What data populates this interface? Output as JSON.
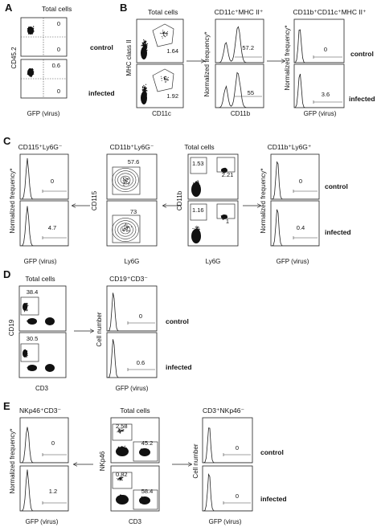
{
  "panels": [
    {
      "label": "A",
      "plots": [
        {
          "title": "Total cells",
          "ylabel": "CD45.2",
          "xlabel": "GFP (virus)",
          "values": [
            {
              "cond": "control",
              "numbers": [
                "0",
                "0"
              ]
            },
            {
              "cond": "infected",
              "numbers": [
                "0.6",
                "0"
              ]
            }
          ]
        }
      ],
      "conditions": [
        "control",
        "infected"
      ]
    },
    {
      "label": "B",
      "plots": [
        {
          "title": "Total cells",
          "ylabel": "MHC class II",
          "xlabel": "CD11c",
          "values": [
            "1.64",
            "1.92"
          ]
        },
        {
          "title": "CD11c⁺MHC II⁺",
          "ylabel": "Normalized frequency*",
          "xlabel": "CD11b",
          "values": [
            "57.2",
            "55"
          ]
        },
        {
          "title": "CD11b⁺CD11c⁺MHC II⁺",
          "ylabel": "Normalized frequency*",
          "xlabel": "GFP (virus)",
          "values": [
            "0",
            "3.6"
          ]
        }
      ],
      "conditions": [
        "control",
        "infected"
      ]
    },
    {
      "label": "C",
      "plots": [
        {
          "title": "CD115⁺Ly6G⁻",
          "ylabel": "Normalized frequency*",
          "xlabel": "GFP (virus)",
          "values": [
            "0",
            "4.7"
          ]
        },
        {
          "title": "CD11b⁺Ly6G⁻",
          "ylabel": "CD115",
          "xlabel": "Ly6G",
          "values": [
            "57.6",
            "73"
          ]
        },
        {
          "title": "Total cells",
          "ylabel": "CD11b",
          "xlabel": "Ly6G",
          "values": [
            "1.53",
            "2.21",
            "1.16",
            "1"
          ]
        },
        {
          "title": "CD11b⁺Ly6G⁺",
          "ylabel": "Normalized frequency*",
          "xlabel": "GFP (virus)",
          "values": [
            "0",
            "0.4"
          ]
        }
      ],
      "conditions": [
        "control",
        "infected"
      ]
    },
    {
      "label": "D",
      "plots": [
        {
          "title": "Total cells",
          "ylabel": "CD19",
          "xlabel": "CD3",
          "values": [
            "38.4",
            "30.5"
          ]
        },
        {
          "title": "CD19⁺CD3⁻",
          "ylabel": "Cell number",
          "xlabel": "GFP (virus)",
          "values": [
            "0",
            "0.6"
          ]
        }
      ],
      "conditions": [
        "control",
        "infected"
      ]
    },
    {
      "label": "E",
      "plots": [
        {
          "title": "NKp46⁺CD3⁻",
          "ylabel": "Normalized frequency*",
          "xlabel": "GFP (virus)",
          "values": [
            "0",
            "1.2"
          ]
        },
        {
          "title": "Total cells",
          "ylabel": "NKp46",
          "xlabel": "CD3",
          "values": [
            "2.58",
            "45.2",
            "0.82",
            "58.4"
          ]
        },
        {
          "title": "CD3⁺NKp46⁻",
          "ylabel": "Cell number",
          "xlabel": "GFP (virus)",
          "values": [
            "0",
            "0"
          ]
        }
      ],
      "conditions": [
        "control",
        "infected"
      ]
    }
  ]
}
